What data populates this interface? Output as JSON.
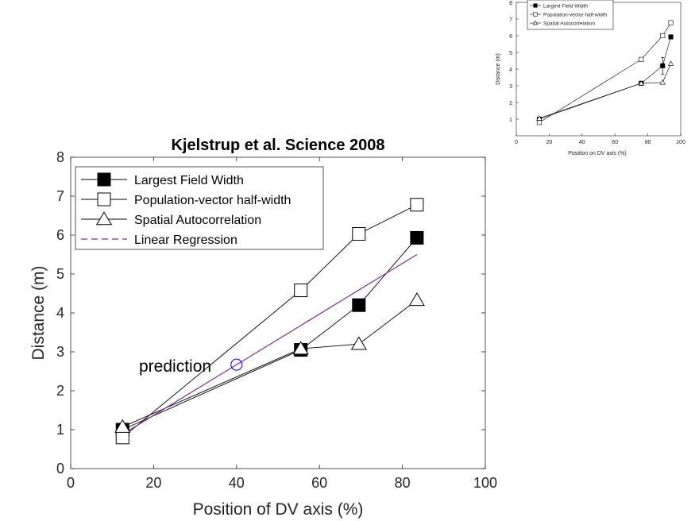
{
  "main_chart": {
    "title": "Kjelstrup et al. Science 2008",
    "annotation": "prediction"
  },
  "inset_chart": {
    "legend": [
      "Largest Field Width",
      "Population-vector half-width",
      "Spatial Autocorrelation"
    ]
  },
  "colors": {
    "axis": "#262626",
    "series": "#000000",
    "regression": "#7E2F8E",
    "prediction": "#0000FF"
  },
  "chart_data": [
    {
      "type": "line",
      "title": "Kjelstrup et al. Science 2008",
      "xlabel": "Position of DV axis (%)",
      "ylabel": "Distance (m)",
      "xlim": [
        0,
        100
      ],
      "ylim": [
        0,
        8
      ],
      "x_ticks": [
        0,
        20,
        40,
        60,
        80,
        100
      ],
      "y_ticks": [
        0,
        1,
        2,
        3,
        4,
        5,
        6,
        7,
        8
      ],
      "legend_position": "top-left",
      "series": [
        {
          "name": "Largest Field Width",
          "marker": "square-filled",
          "x": [
            12.5,
            55.5,
            69.5,
            83.5
          ],
          "y": [
            1.0,
            3.05,
            4.2,
            5.93
          ]
        },
        {
          "name": "Population-vector half-width",
          "marker": "square-open",
          "x": [
            12.5,
            55.5,
            69.5,
            83.5
          ],
          "y": [
            0.8,
            4.58,
            6.03,
            6.78
          ]
        },
        {
          "name": "Spatial Autocorrelation",
          "marker": "triangle-open",
          "x": [
            12.5,
            55.5,
            69.5,
            83.5
          ],
          "y": [
            1.07,
            3.08,
            3.2,
            4.33
          ]
        },
        {
          "name": "Linear Regression",
          "style": "dashed",
          "x": [
            12.5,
            83.5
          ],
          "y": [
            0.88,
            5.5
          ]
        }
      ],
      "annotations": [
        {
          "text": "prediction",
          "x": 40,
          "y": 2.67,
          "marker": "circle-open"
        }
      ]
    },
    {
      "type": "line",
      "xlabel": "Position on DV axis (%)",
      "ylabel": "Distance (m)",
      "xlim": [
        0,
        100
      ],
      "ylim": [
        0,
        8
      ],
      "x_ticks": [
        0,
        20,
        40,
        60,
        80,
        100
      ],
      "y_ticks": [
        1,
        2,
        3,
        4,
        5,
        6,
        7,
        8
      ],
      "legend_position": "top-left",
      "series": [
        {
          "name": "Largest Field Width",
          "marker": "square-filled",
          "x": [
            14,
            76,
            89,
            94
          ],
          "y": [
            1.0,
            3.15,
            4.2,
            5.93
          ],
          "err": [
            0,
            0,
            0.5,
            0
          ]
        },
        {
          "name": "Population-vector half-width",
          "marker": "square-open",
          "x": [
            14,
            76,
            89,
            94
          ],
          "y": [
            0.8,
            4.58,
            6.0,
            6.78
          ]
        },
        {
          "name": "Spatial Autocorrelation",
          "marker": "triangle-open",
          "x": [
            14,
            76,
            89,
            94
          ],
          "y": [
            1.05,
            3.15,
            3.2,
            4.33
          ]
        }
      ]
    }
  ]
}
